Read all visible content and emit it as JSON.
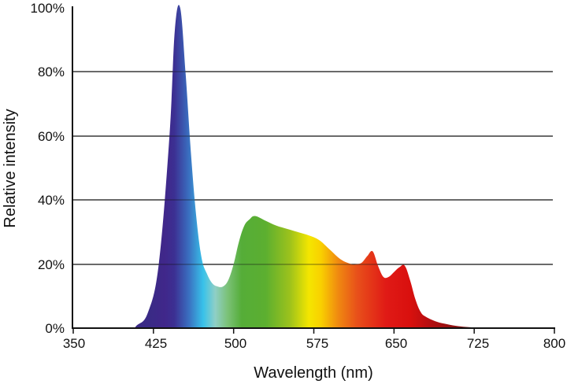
{
  "chart_data": {
    "type": "area",
    "title": "",
    "xlabel": "Wavelength (nm)",
    "ylabel": "Relative intensity",
    "xlim": [
      350,
      800
    ],
    "ylim": [
      0,
      100
    ],
    "x_ticks": [
      "350",
      "425",
      "500",
      "575",
      "650",
      "725",
      "800"
    ],
    "y_ticks": [
      "0%",
      "20%",
      "40%",
      "60%",
      "80%",
      "100%"
    ],
    "grid": {
      "horizontal": true,
      "vertical": false,
      "lines_at": [
        20,
        40,
        60,
        80
      ]
    },
    "legend": null,
    "fill": "visible spectrum gradient (violet to deep red)",
    "series": [
      {
        "name": "Relative intensity",
        "x": [
          350,
          400,
          410,
          420,
          430,
          440,
          445,
          450,
          455,
          460,
          465,
          470,
          475,
          480,
          485,
          490,
          495,
          500,
          505,
          510,
          515,
          520,
          530,
          540,
          550,
          560,
          570,
          580,
          590,
          600,
          610,
          615,
          620,
          625,
          630,
          635,
          640,
          645,
          650,
          655,
          660,
          665,
          670,
          675,
          680,
          690,
          700,
          710,
          720,
          730,
          740
        ],
        "values": [
          0,
          0,
          1,
          5,
          20,
          60,
          93,
          100,
          80,
          55,
          35,
          22,
          17,
          14,
          13,
          13,
          15,
          20,
          27,
          32,
          34,
          35,
          33.5,
          32,
          31,
          30,
          29,
          27.5,
          24.5,
          21.5,
          20,
          20,
          20.5,
          22.5,
          24,
          19.5,
          16,
          16,
          17.5,
          19,
          19.5,
          15,
          9,
          5,
          3.5,
          2,
          1.2,
          0.6,
          0.3,
          0.1,
          0
        ]
      }
    ]
  }
}
